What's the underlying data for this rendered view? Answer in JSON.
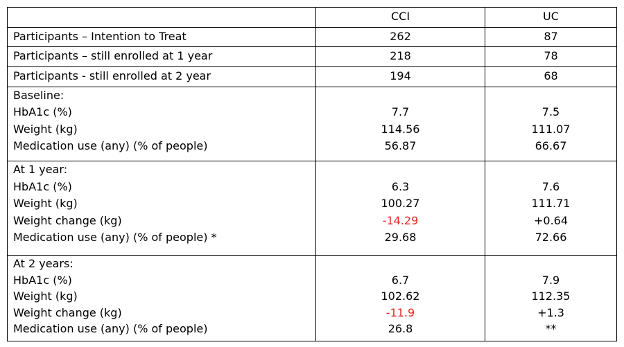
{
  "columns": [
    "",
    "CCI",
    "UC"
  ],
  "rows": [
    {
      "label": "Participants – Intention to Treat",
      "cci": "262",
      "uc": "87"
    },
    {
      "label": "Participants – still enrolled at 1 year",
      "cci": "218",
      "uc": "78"
    },
    {
      "label": "Participants - still enrolled at 2 year",
      "cci": "194",
      "uc": "68"
    }
  ],
  "groups": [
    {
      "heading": "Baseline:",
      "items": [
        {
          "label": "HbA1c (%)",
          "cci": "7.7",
          "uc": "7.5"
        },
        {
          "label": "Weight (kg)",
          "cci": "114.56",
          "uc": "111.07"
        },
        {
          "label": "Medication use (any) (% of people)",
          "cci": "56.87",
          "uc": "66.67"
        }
      ]
    },
    {
      "heading": "At 1 year:",
      "items": [
        {
          "label": "HbA1c (%)",
          "cci": "6.3",
          "uc": "7.6"
        },
        {
          "label": "Weight (kg)",
          "cci": "100.27",
          "uc": "111.71"
        },
        {
          "label": "Weight change (kg)",
          "cci": "-14.29",
          "uc": "+0.64"
        },
        {
          "label": "Medication use (any) (% of people) *",
          "cci": "29.68",
          "uc": "72.66"
        }
      ]
    },
    {
      "heading": "At 2 years:",
      "items": [
        {
          "label": "HbA1c (%)",
          "cci": "6.7",
          "uc": "7.9"
        },
        {
          "label": "Weight (kg)",
          "cci": "102.62",
          "uc": "112.35"
        },
        {
          "label": "Weight change (kg)",
          "cci": "-11.9",
          "uc": "+1.3"
        },
        {
          "label": "Medication use (any) (% of people)",
          "cci": "26.8",
          "uc": "**"
        }
      ]
    }
  ],
  "colors": {
    "negative_change": "#e8231f"
  }
}
